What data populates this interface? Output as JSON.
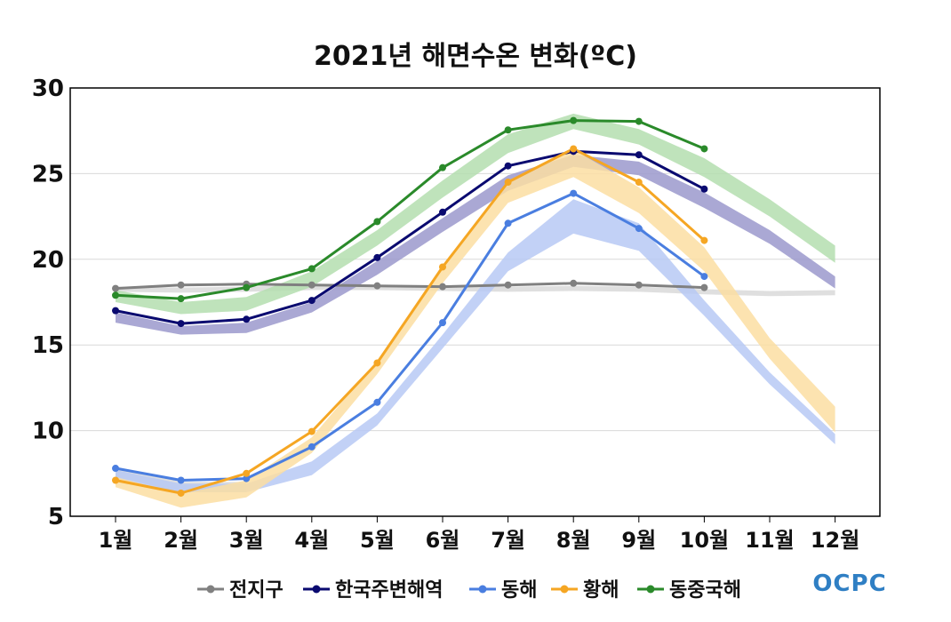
{
  "chart_data": {
    "type": "line",
    "title": "2021년 해면수온 변화(ºC)",
    "xlabel": "",
    "ylabel": "",
    "categories": [
      "1월",
      "2월",
      "3월",
      "4월",
      "5월",
      "6월",
      "7월",
      "8월",
      "9월",
      "10월",
      "11월",
      "12월"
    ],
    "ylim": [
      5,
      30
    ],
    "yticks": [
      5,
      10,
      15,
      20,
      25,
      30
    ],
    "grid": true,
    "legend_position": "bottom",
    "series": [
      {
        "name": "전지구",
        "color": "#808080",
        "values": [
          18.3,
          18.5,
          18.55,
          18.5,
          18.45,
          18.4,
          18.5,
          18.6,
          18.5,
          18.35,
          null,
          null
        ],
        "band": [
          [
            7.3,
            7.9
          ],
          [
            6.4,
            7.0
          ],
          [
            6.4,
            7.0
          ],
          [
            null,
            null
          ],
          [
            null,
            null
          ],
          [
            null,
            null
          ],
          [
            null,
            null
          ],
          [
            null,
            null
          ],
          [
            null,
            null
          ],
          [
            null,
            null
          ],
          [
            null,
            null
          ],
          [
            null,
            null
          ]
        ],
        "band_clim": [
          [
            18.1,
            18.4
          ],
          [
            18.05,
            18.35
          ],
          [
            18.1,
            18.4
          ],
          [
            18.2,
            18.5
          ],
          [
            18.2,
            18.5
          ],
          [
            18.15,
            18.45
          ],
          [
            18.1,
            18.4
          ],
          [
            18.15,
            18.45
          ],
          [
            18.1,
            18.4
          ],
          [
            17.95,
            18.25
          ],
          [
            17.85,
            18.15
          ],
          [
            17.9,
            18.2
          ]
        ]
      },
      {
        "name": "한국주변해역",
        "color": "#0a0a70",
        "band_color": "#9b99cc",
        "values": [
          17.0,
          16.25,
          16.5,
          17.6,
          20.1,
          22.75,
          25.45,
          26.3,
          26.1,
          24.1,
          null,
          null
        ],
        "band_clim": [
          [
            16.3,
            16.9
          ],
          [
            15.6,
            16.1
          ],
          [
            15.7,
            16.3
          ],
          [
            16.9,
            17.5
          ],
          [
            19.1,
            19.9
          ],
          [
            21.6,
            22.4
          ],
          [
            24.0,
            24.9
          ],
          [
            25.4,
            26.1
          ],
          [
            24.9,
            25.7
          ],
          [
            23.0,
            23.9
          ],
          [
            20.9,
            21.7
          ],
          [
            18.3,
            19.0
          ]
        ]
      },
      {
        "name": "동해",
        "color": "#4a7ee0",
        "band_color": "#b7c9f5",
        "values": [
          7.8,
          7.1,
          7.2,
          9.05,
          11.65,
          16.3,
          22.1,
          23.85,
          21.8,
          19.0,
          null,
          null
        ],
        "band_clim": [
          [
            7.2,
            7.7
          ],
          [
            6.4,
            6.9
          ],
          [
            6.4,
            6.9
          ],
          [
            7.4,
            8.2
          ],
          [
            10.3,
            11.0
          ],
          [
            14.8,
            15.6
          ],
          [
            19.3,
            20.4
          ],
          [
            21.5,
            23.5
          ],
          [
            20.5,
            22.1
          ],
          [
            16.7,
            17.6
          ],
          [
            12.7,
            13.4
          ],
          [
            9.2,
            9.8
          ]
        ]
      },
      {
        "name": "황해",
        "color": "#f5a623",
        "band_color": "#fcdea2",
        "values": [
          7.1,
          6.35,
          7.5,
          9.95,
          13.95,
          19.55,
          24.5,
          26.45,
          24.5,
          21.1,
          null,
          null
        ],
        "band_clim": [
          [
            6.7,
            7.3
          ],
          [
            5.5,
            6.3
          ],
          [
            6.1,
            7.1
          ],
          [
            8.7,
            9.6
          ],
          [
            13.3,
            14.1
          ],
          [
            18.6,
            19.6
          ],
          [
            23.3,
            24.5
          ],
          [
            24.8,
            26.4
          ],
          [
            22.7,
            24.2
          ],
          [
            19.3,
            20.7
          ],
          [
            14.2,
            15.4
          ],
          [
            9.9,
            11.4
          ]
        ]
      },
      {
        "name": "동중국해",
        "color": "#2a8a2a",
        "band_color": "#b4deaf",
        "values": [
          17.9,
          17.7,
          18.35,
          19.45,
          22.2,
          25.35,
          27.55,
          28.1,
          28.05,
          26.45,
          null,
          null
        ],
        "band_clim": [
          [
            17.5,
            18.2
          ],
          [
            16.8,
            17.5
          ],
          [
            17.0,
            17.8
          ],
          [
            18.4,
            19.3
          ],
          [
            20.8,
            21.7
          ],
          [
            23.6,
            24.6
          ],
          [
            26.2,
            27.3
          ],
          [
            27.6,
            28.5
          ],
          [
            26.7,
            27.6
          ],
          [
            24.8,
            25.9
          ],
          [
            22.5,
            23.5
          ],
          [
            19.8,
            20.8
          ]
        ]
      }
    ]
  },
  "logo": "OCPC"
}
